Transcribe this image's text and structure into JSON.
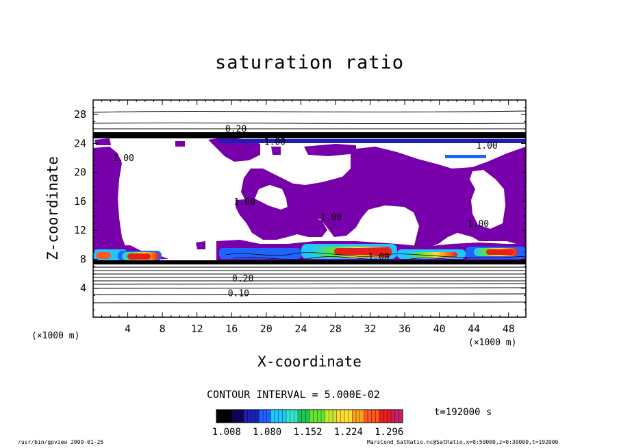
{
  "chart_data": {
    "type": "heatmap",
    "title": "saturation ratio",
    "xlabel": "X-coordinate",
    "ylabel": "Z-coordinate",
    "x_unit": "(×1000 m)",
    "z_unit": "(×1000 m)",
    "xlim": [
      0,
      50
    ],
    "ylim": [
      0,
      30
    ],
    "x_ticks": [
      4,
      8,
      12,
      16,
      20,
      24,
      28,
      32,
      36,
      40,
      44,
      48
    ],
    "y_ticks": [
      4,
      8,
      12,
      16,
      20,
      24,
      28
    ],
    "contour_interval_label": "CONTOUR INTERVAL = 5.000E-02",
    "time_label": "t=192000 s",
    "colorbar": {
      "tick_labels": [
        "1.008",
        "1.080",
        "1.152",
        "1.224",
        "1.296"
      ],
      "range": [
        0.99,
        1.32
      ],
      "colors": [
        "#000000",
        "#12005a",
        "#1e1eb4",
        "#1e64ff",
        "#1ec8ff",
        "#32e6c8",
        "#1ec850",
        "#64e632",
        "#c8e632",
        "#ffdc32",
        "#ffa01e",
        "#ff5a1e",
        "#e61e1e",
        "#c81e64"
      ]
    },
    "contour_labels": [
      {
        "text": "0.20",
        "x": 16.5,
        "z": 25.6
      },
      {
        "text": "1.00",
        "x": 21.0,
        "z": 23.8
      },
      {
        "text": "1.00",
        "x": 45.5,
        "z": 23.3
      },
      {
        "text": "1.00",
        "x": 3.5,
        "z": 21.6
      },
      {
        "text": "1.00",
        "x": 17.5,
        "z": 15.5
      },
      {
        "text": "1.00",
        "x": 27.5,
        "z": 13.4
      },
      {
        "text": "1.00",
        "x": 44.5,
        "z": 12.5
      },
      {
        "text": "1.00",
        "x": 33.0,
        "z": 7.9
      },
      {
        "text": "0.20",
        "x": 17.3,
        "z": 4.9
      },
      {
        "text": "0.10",
        "x": 16.8,
        "z": 2.9
      }
    ]
  },
  "footer": {
    "left": "/usr/bin/gpview   2009-01-25",
    "right": "MarsCond_SatRatio.nc@SatRatio,x=0:50000,z=0:30000,t=192000"
  },
  "colors": {
    "purple": "#7700aa",
    "axis": "#000000"
  }
}
